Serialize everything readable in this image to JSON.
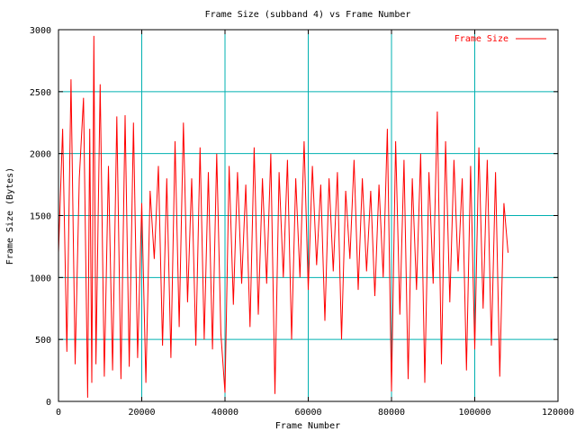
{
  "chart_data": {
    "type": "line",
    "title": "Frame Size (subband 4) vs Frame Number",
    "xlabel": "Frame Number",
    "ylabel": "Frame Size (Bytes)",
    "xlim": [
      0,
      120000
    ],
    "ylim": [
      0,
      3000
    ],
    "xticks": [
      0,
      20000,
      40000,
      60000,
      80000,
      100000,
      120000
    ],
    "yticks": [
      0,
      500,
      1000,
      1500,
      2000,
      2500,
      3000
    ],
    "xtick_labels": [
      "0",
      "20000",
      "40000",
      "60000",
      "80000",
      "100000",
      "120000"
    ],
    "ytick_labels": [
      "0",
      "500",
      "1000",
      "1500",
      "2000",
      "2500",
      "3000"
    ],
    "grid": true,
    "grid_color": "#00b0b0",
    "legend_position": "top-right",
    "series": [
      {
        "name": "Frame Size",
        "color": "#ff0000",
        "x": [
          0,
          1000,
          2000,
          3000,
          4000,
          5000,
          6000,
          7000,
          7500,
          8000,
          8500,
          9000,
          10000,
          11000,
          12000,
          13000,
          14000,
          15000,
          16000,
          17000,
          18000,
          19000,
          20000,
          21000,
          22000,
          23000,
          24000,
          25000,
          26000,
          27000,
          28000,
          29000,
          30000,
          31000,
          32000,
          33000,
          34000,
          35000,
          36000,
          37000,
          38000,
          39000,
          40000,
          41000,
          42000,
          43000,
          44000,
          45000,
          46000,
          47000,
          48000,
          49000,
          50000,
          51000,
          52000,
          53000,
          54000,
          55000,
          56000,
          57000,
          58000,
          59000,
          60000,
          61000,
          62000,
          63000,
          64000,
          65000,
          66000,
          67000,
          68000,
          69000,
          70000,
          71000,
          72000,
          73000,
          74000,
          75000,
          76000,
          77000,
          78000,
          79000,
          80000,
          81000,
          82000,
          83000,
          84000,
          85000,
          86000,
          87000,
          88000,
          89000,
          90000,
          91000,
          92000,
          93000,
          94000,
          95000,
          96000,
          97000,
          98000,
          99000,
          100000,
          101000,
          102000,
          103000,
          104000,
          105000,
          106000,
          107000,
          108000
        ],
        "values": [
          1200,
          2200,
          400,
          2600,
          300,
          1800,
          2450,
          30,
          2200,
          150,
          2950,
          300,
          2560,
          200,
          1900,
          250,
          2300,
          180,
          2310,
          280,
          2250,
          350,
          1600,
          150,
          1700,
          1150,
          1900,
          450,
          1800,
          350,
          2100,
          600,
          2250,
          800,
          1800,
          450,
          2050,
          500,
          1850,
          420,
          2000,
          550,
          70,
          1900,
          780,
          1850,
          950,
          1750,
          600,
          2050,
          700,
          1800,
          950,
          2000,
          60,
          1850,
          1000,
          1950,
          500,
          1800,
          1000,
          2100,
          900,
          1900,
          1100,
          1750,
          650,
          1800,
          1050,
          1850,
          500,
          1700,
          1150,
          1950,
          900,
          1800,
          1050,
          1700,
          850,
          1750,
          1000,
          2200,
          80,
          2100,
          700,
          1950,
          180,
          1800,
          900,
          2000,
          150,
          1850,
          950,
          2340,
          300,
          2100,
          800,
          1950,
          1050,
          1800,
          250,
          1900,
          420,
          2050,
          750,
          1950,
          450,
          1850,
          200,
          1600,
          1200
        ]
      }
    ]
  }
}
